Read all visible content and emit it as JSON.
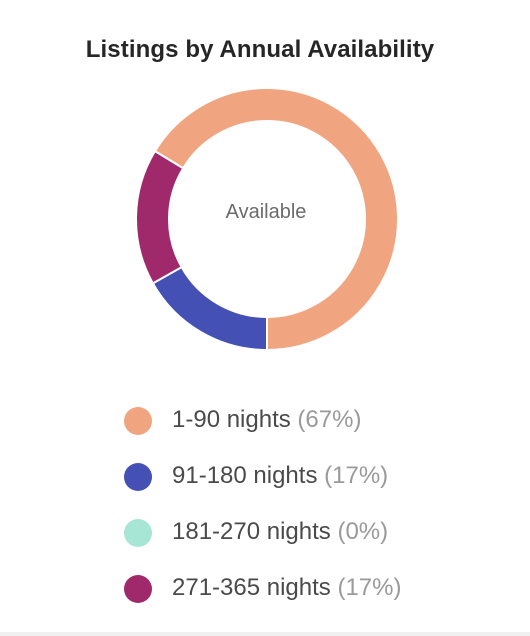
{
  "card": {
    "title": "Listings by Annual Availability",
    "center_label": "Available"
  },
  "chart_data": {
    "type": "pie",
    "title": "Listings by Annual Availability",
    "hole": "donut",
    "center_text": "Available",
    "legend_position": "bottom",
    "slices": [
      {
        "label": "1-90 nights",
        "percent_label": "(67%)",
        "value": 67,
        "color": "#F0A580"
      },
      {
        "label": "91-180 nights",
        "percent_label": "(17%)",
        "value": 17,
        "color": "#4450B3"
      },
      {
        "label": "181-270 nights",
        "percent_label": "(0%)",
        "value": 0,
        "color": "#A7E6D4"
      },
      {
        "label": "271-365 nights",
        "percent_label": "(17%)",
        "value": 17,
        "color": "#A0296B"
      }
    ]
  }
}
